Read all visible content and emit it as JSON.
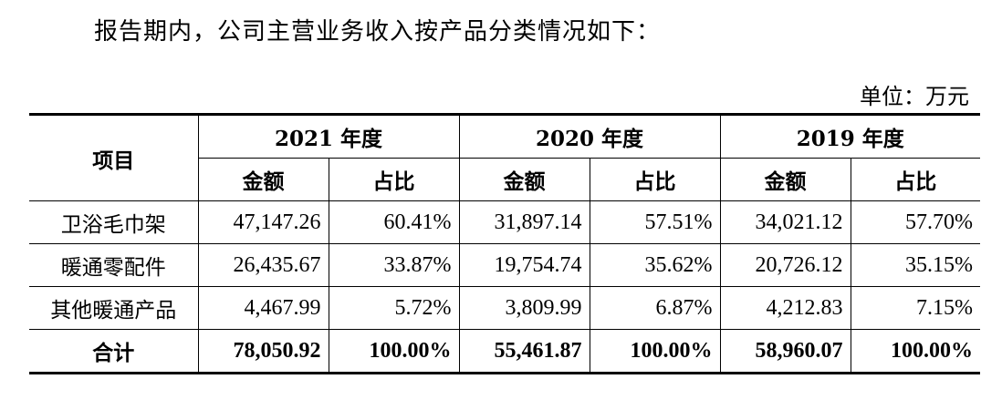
{
  "intro": "报告期内，公司主营业务收入按产品分类情况如下：",
  "unit": "单位：万元",
  "table": {
    "item_header": "项目",
    "years": [
      "2021 年度",
      "2020 年度",
      "2019 年度"
    ],
    "sub_headers": {
      "amount": "金额",
      "ratio": "占比"
    },
    "rows": [
      {
        "name": "卫浴毛巾架",
        "cells": [
          "47,147.26",
          "60.41%",
          "31,897.14",
          "57.51%",
          "34,021.12",
          "57.70%"
        ]
      },
      {
        "name": "暖通零配件",
        "cells": [
          "26,435.67",
          "33.87%",
          "19,754.74",
          "35.62%",
          "20,726.12",
          "35.15%"
        ]
      },
      {
        "name": "其他暖通产品",
        "cells": [
          "4,467.99",
          "5.72%",
          "3,809.99",
          "6.87%",
          "4,212.83",
          "7.15%"
        ]
      }
    ],
    "total": {
      "name": "合计",
      "cells": [
        "78,050.92",
        "100.00%",
        "55,461.87",
        "100.00%",
        "58,960.07",
        "100.00%"
      ]
    }
  }
}
